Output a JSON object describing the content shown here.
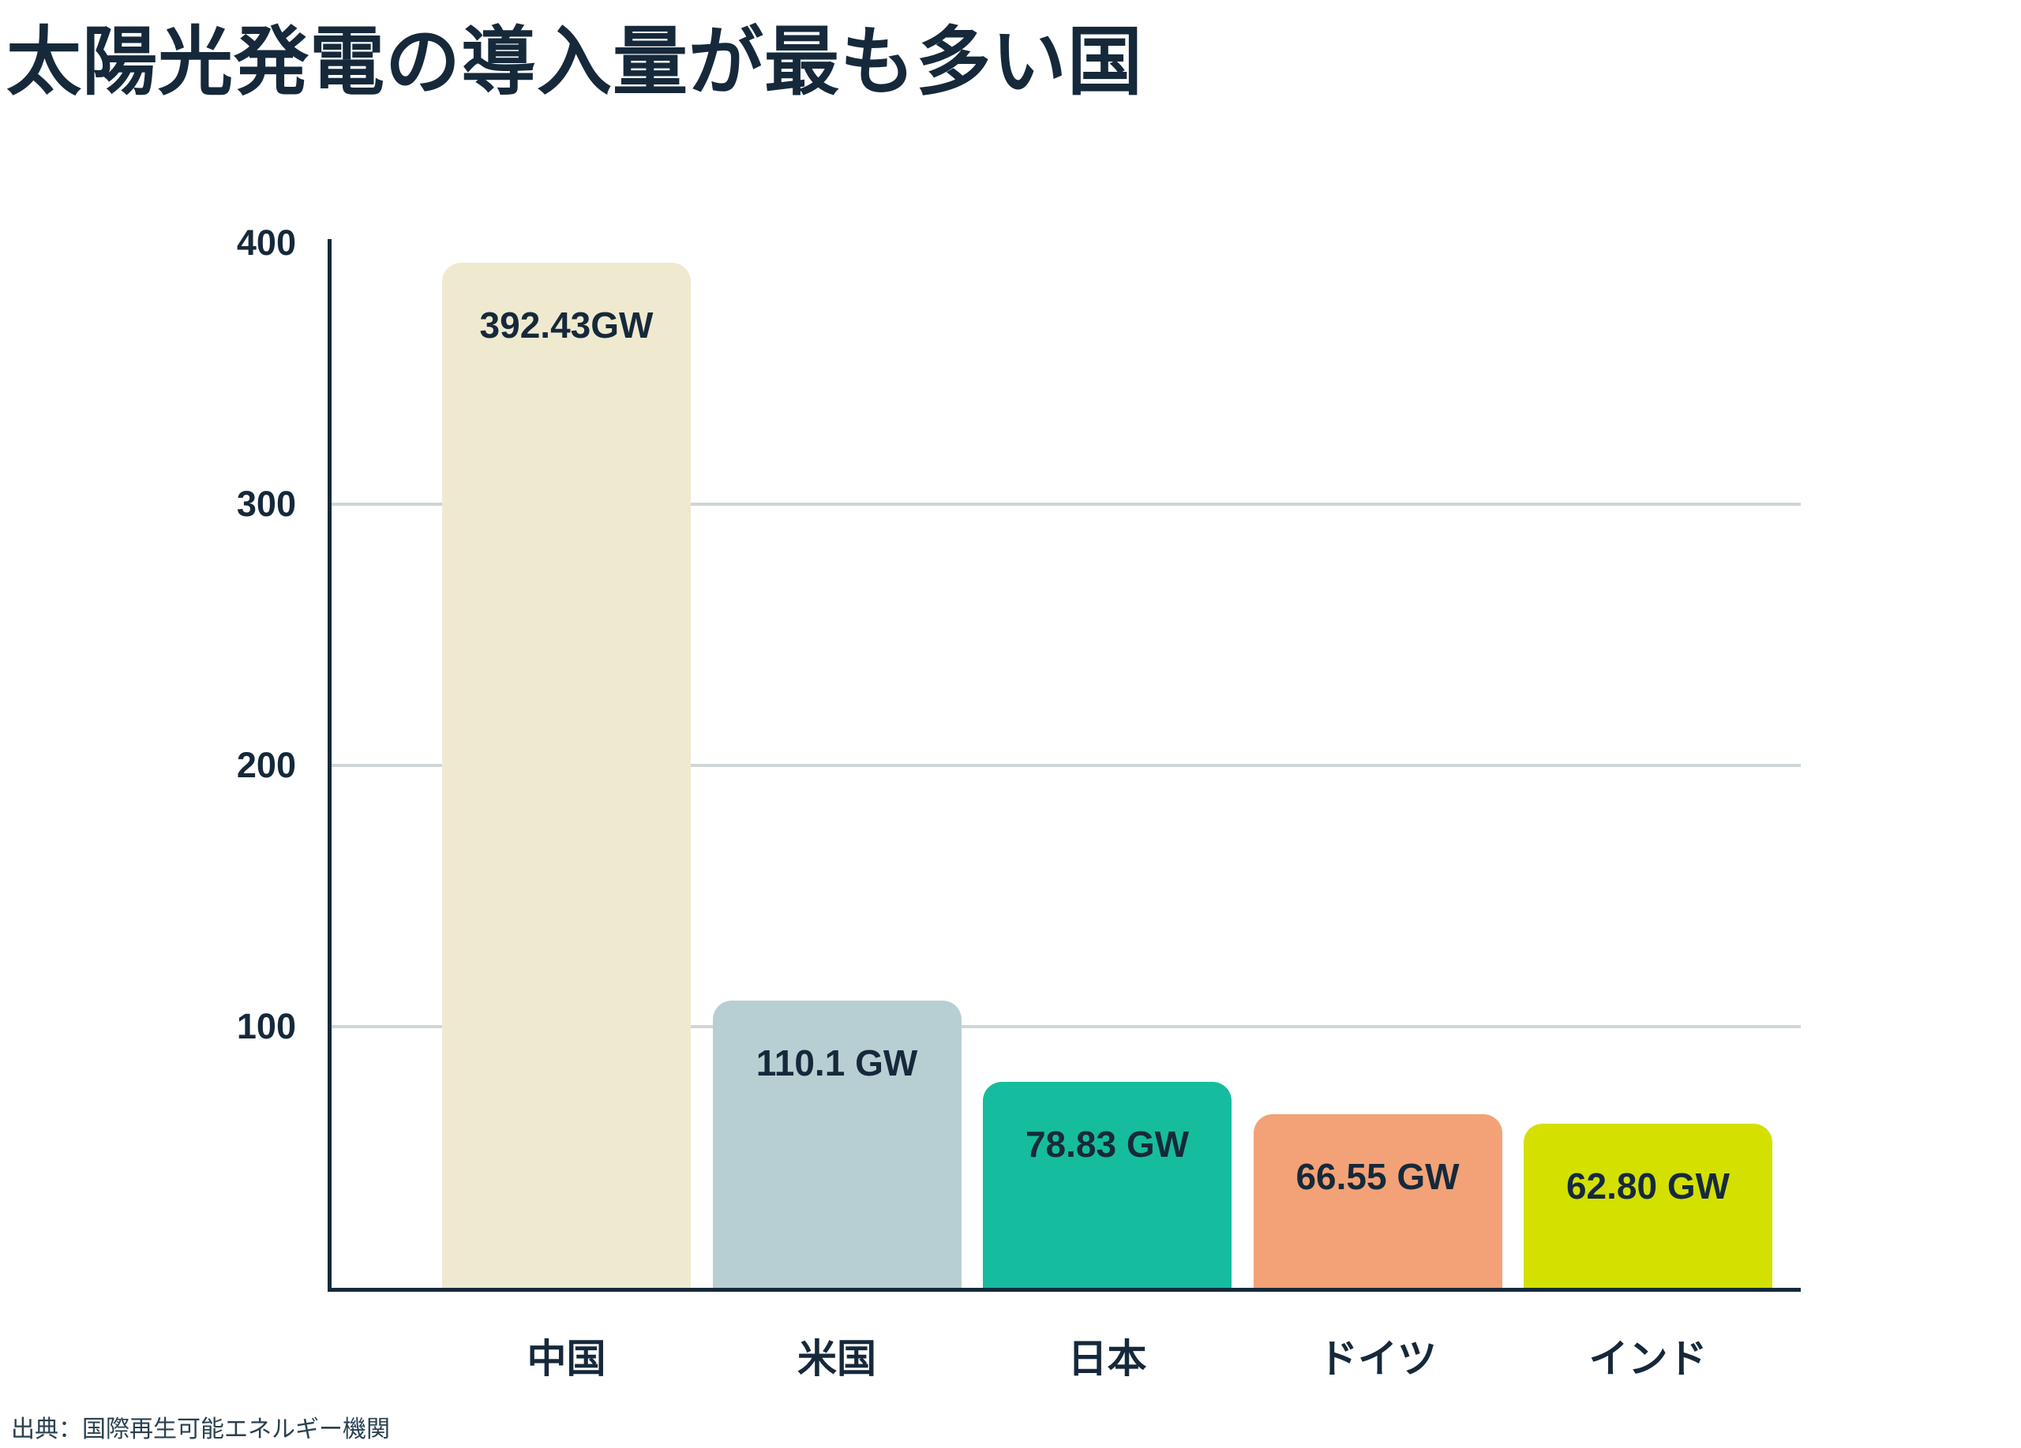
{
  "title": "太陽光発電の導入量が最も多い国",
  "source": "出典：国際再生可能エネルギー機関",
  "colors": {
    "text": "#16293B",
    "axis": "#16293B",
    "gridline": "#CFD6D8",
    "background": "#FFFFFF"
  },
  "chart_data": {
    "type": "bar",
    "title": "太陽光発電の導入量が最も多い国",
    "categories": [
      "中国",
      "米国",
      "日本",
      "ドイツ",
      "インド"
    ],
    "category_keys": [
      "china",
      "usa",
      "japan",
      "germany",
      "india"
    ],
    "values": [
      392.43,
      110.1,
      78.83,
      66.55,
      62.8
    ],
    "value_labels": [
      "392.43GW",
      "110.1 GW",
      "78.83 GW",
      "66.55 GW",
      "62.80 GW"
    ],
    "bar_colors": [
      "#EFEACF",
      "#B7CFD2",
      "#16BC9E",
      "#F2A276",
      "#D3E000"
    ],
    "unit": "GW",
    "xlabel": "",
    "ylabel": "",
    "ylim": [
      0,
      400
    ],
    "yticks": [
      400,
      300,
      200,
      100
    ],
    "grid": "horizontal-at-300-200-100",
    "legend": "none",
    "source_label": "出典：国際再生可能エネルギー機関"
  }
}
